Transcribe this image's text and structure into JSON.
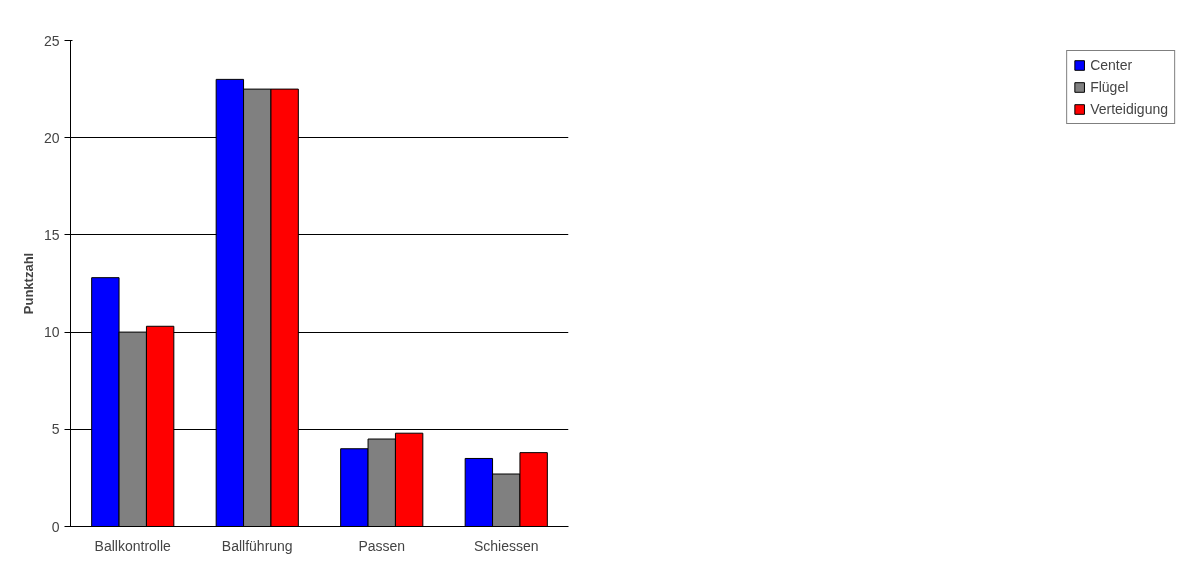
{
  "chart_data": {
    "type": "bar",
    "ylabel": "Punktzahl",
    "categories": [
      "Ballkontrolle",
      "Ballführung",
      "Passen",
      "Schiessen"
    ],
    "series": [
      {
        "name": "Center",
        "color": "#0000ff",
        "values": [
          12.8,
          23,
          4.0,
          3.5
        ]
      },
      {
        "name": "Flügel",
        "color": "#808080",
        "values": [
          10,
          22.5,
          4.5,
          2.7
        ]
      },
      {
        "name": "Verteidigung",
        "color": "#ff0000",
        "values": [
          10.3,
          22.5,
          4.8,
          3.8
        ]
      }
    ],
    "ylim": [
      0,
      25
    ],
    "yticks": [
      0,
      5,
      10,
      15,
      20,
      25
    ],
    "grid": "y",
    "legend": "right"
  }
}
